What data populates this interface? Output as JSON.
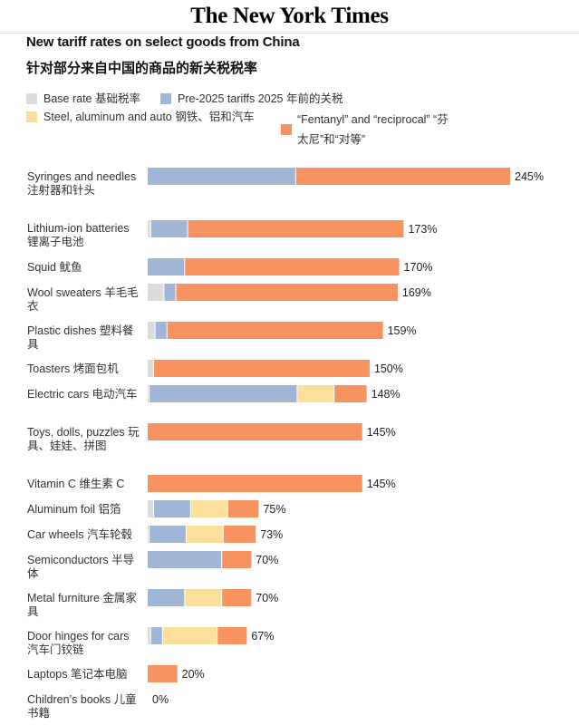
{
  "masthead": "The New York Times",
  "chart_data": {
    "type": "bar",
    "orientation": "horizontal",
    "stacked": true,
    "title": "New tariff rates on select goods from China",
    "subtitle": "针对部分来自中国的商品的新关税税率",
    "legend_placement": "top",
    "series": [
      {
        "name": "Base rate 基础税率",
        "color": "#dcdcdc",
        "values": [
          0,
          2,
          0,
          11,
          5,
          4,
          1,
          0,
          0,
          4,
          1,
          0,
          0,
          2,
          0,
          0
        ]
      },
      {
        "name": "Pre-2025 tariffs 2025 年前的关税",
        "color": "#9fb6d6",
        "values": [
          100,
          25,
          25,
          8,
          8,
          0,
          100,
          0,
          0,
          25,
          25,
          50,
          25,
          8,
          0,
          0
        ]
      },
      {
        "name": "Steel, aluminum and auto 钢铁、铝和汽车",
        "color": "#fbdf9b",
        "values": [
          0,
          0,
          0,
          0,
          0,
          0,
          25,
          0,
          0,
          25,
          25,
          0,
          25,
          37,
          0,
          0
        ]
      },
      {
        "name": "“Fentanyl” and “reciprocal” “芬太尼”和“对等”",
        "color": "#f89261",
        "values": [
          145,
          146,
          145,
          150,
          146,
          146,
          22,
          145,
          145,
          21,
          22,
          20,
          20,
          20,
          20,
          0
        ]
      }
    ],
    "categories": [
      "Syringes and needles 注射器和针头",
      "Lithium-ion batteries 锂离子电池",
      "Squid 鱿鱼",
      "Wool sweaters 羊毛毛衣",
      "Plastic dishes 塑料餐具",
      "Toasters 烤面包机",
      "Electric cars 电动汽车",
      "Toys, dolls, puzzles 玩具、娃娃、拼图",
      "Vitamin C 维生素 C",
      "Aluminum foil 铝箔",
      "Car wheels 汽车轮毂",
      "Semiconductors 半导体",
      "Metal furniture 金属家具",
      "Door hinges for cars 汽车门铰链",
      "Laptops 笔记本电脑",
      "Children’s books 儿童书籍"
    ],
    "totals": [
      "245%",
      "173%",
      "170%",
      "169%",
      "159%",
      "150%",
      "148%",
      "145%",
      "145%",
      "75%",
      "73%",
      "70%",
      "70%",
      "67%",
      "20%",
      "0%"
    ],
    "xlim": [
      0,
      245
    ],
    "grid": false
  }
}
